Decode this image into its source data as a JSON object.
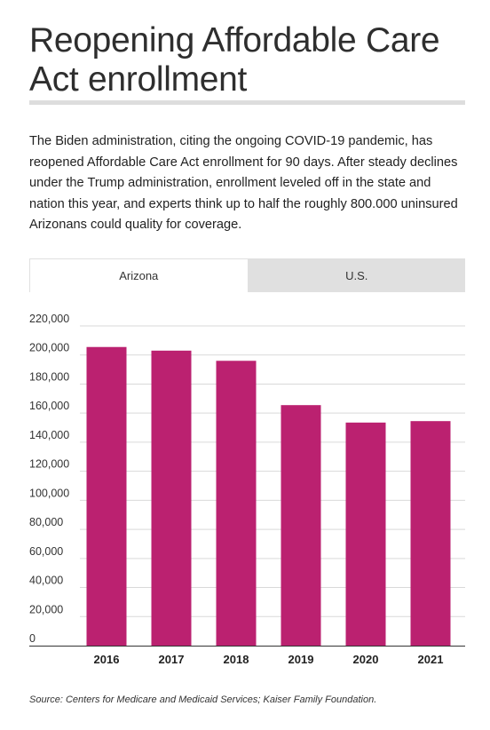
{
  "header": {
    "title": "Reopening Affordable Care Act enrollment",
    "description": "The Biden administration, citing the ongoing COVID-19 pandemic, has reopened Affordable Care Act enrollment for 90 days. After steady declines under the Trump administration, enrollment leveled off in the state and nation this year, and experts think up to half the roughly 800.000 uninsured Arizonans could quality for coverage."
  },
  "tabs": [
    {
      "label": "Arizona",
      "active": true
    },
    {
      "label": "U.S.",
      "active": false
    }
  ],
  "colors": {
    "bar": "#bb2170",
    "grid": "#d9d9d9",
    "axis": "#333333"
  },
  "chart_data": {
    "type": "bar",
    "categories": [
      "2016",
      "2017",
      "2018",
      "2019",
      "2020",
      "2021"
    ],
    "values": [
      205500,
      203000,
      196000,
      165500,
      153500,
      154500
    ],
    "ylim": [
      0,
      220000
    ],
    "yticks": [
      "0",
      "20,000",
      "40,000",
      "60,000",
      "80,000",
      "100,000",
      "120,000",
      "140,000",
      "160,000",
      "180,000",
      "200,000",
      "220,000"
    ],
    "grid": true,
    "title": "",
    "xlabel": "",
    "ylabel": ""
  },
  "footer": {
    "source": "Source: Centers for Medicare and Medicaid Services; Kaiser Family Foundation."
  }
}
